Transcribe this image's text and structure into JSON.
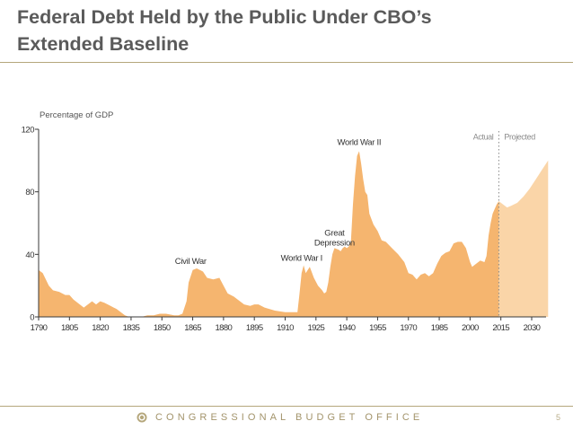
{
  "slide": {
    "title_line1": "Federal Debt Held by the Public Under CBO’s",
    "title_line2": "Extended Baseline",
    "footer_org": "CONGRESSIONAL BUDGET OFFICE",
    "page_number": "5"
  },
  "colors": {
    "actual": "#f5b56f",
    "projected": "#fad5a8",
    "axis": "#3a3a3a",
    "divider": "#888888",
    "accent": "#b5a77c"
  },
  "chart_data": {
    "type": "area",
    "title": "Federal Debt Held by the Public Under CBO’s Extended Baseline",
    "ylabel": "Percentage of GDP",
    "xlabel": "",
    "xlim": [
      1790,
      2040
    ],
    "ylim": [
      0,
      120
    ],
    "x_ticks": [
      1790,
      1805,
      1820,
      1835,
      1850,
      1865,
      1880,
      1895,
      1910,
      1925,
      1940,
      1955,
      1970,
      1985,
      2000,
      2015,
      2030
    ],
    "y_ticks": [
      0,
      40,
      80,
      120
    ],
    "divider_year": 2014,
    "labels": {
      "actual": "Actual",
      "projected": "Projected"
    },
    "annotations": [
      {
        "text": "Civil War",
        "x": 1864,
        "y": 34
      },
      {
        "text": "World War I",
        "x": 1918,
        "y": 36
      },
      {
        "text": "Great Depression",
        "x": 1934,
        "y": 52
      },
      {
        "text": "World War II",
        "x": 1946,
        "y": 110
      }
    ],
    "series": [
      {
        "name": "Actual",
        "points": [
          [
            1790,
            30
          ],
          [
            1792,
            28
          ],
          [
            1795,
            20
          ],
          [
            1797,
            17
          ],
          [
            1800,
            16
          ],
          [
            1803,
            14
          ],
          [
            1805,
            14
          ],
          [
            1807,
            11
          ],
          [
            1810,
            8
          ],
          [
            1812,
            6
          ],
          [
            1814,
            8
          ],
          [
            1816,
            10
          ],
          [
            1818,
            8
          ],
          [
            1820,
            10
          ],
          [
            1822,
            9
          ],
          [
            1825,
            7
          ],
          [
            1828,
            5
          ],
          [
            1830,
            3
          ],
          [
            1832,
            1
          ],
          [
            1834,
            0
          ],
          [
            1840,
            0
          ],
          [
            1843,
            1
          ],
          [
            1846,
            1
          ],
          [
            1849,
            2
          ],
          [
            1852,
            2
          ],
          [
            1856,
            1
          ],
          [
            1858,
            1
          ],
          [
            1860,
            2
          ],
          [
            1862,
            10
          ],
          [
            1863,
            22
          ],
          [
            1865,
            30
          ],
          [
            1867,
            31
          ],
          [
            1870,
            29
          ],
          [
            1872,
            25
          ],
          [
            1875,
            24
          ],
          [
            1878,
            25
          ],
          [
            1880,
            20
          ],
          [
            1882,
            15
          ],
          [
            1885,
            13
          ],
          [
            1888,
            10
          ],
          [
            1890,
            8
          ],
          [
            1893,
            7
          ],
          [
            1895,
            8
          ],
          [
            1897,
            8
          ],
          [
            1900,
            6
          ],
          [
            1905,
            4
          ],
          [
            1910,
            3
          ],
          [
            1914,
            3
          ],
          [
            1916,
            3
          ],
          [
            1917,
            15
          ],
          [
            1918,
            28
          ],
          [
            1919,
            33
          ],
          [
            1920,
            28
          ],
          [
            1922,
            32
          ],
          [
            1924,
            25
          ],
          [
            1926,
            20
          ],
          [
            1928,
            17
          ],
          [
            1929,
            15
          ],
          [
            1930,
            16
          ],
          [
            1931,
            22
          ],
          [
            1932,
            32
          ],
          [
            1933,
            40
          ],
          [
            1934,
            44
          ],
          [
            1936,
            43
          ],
          [
            1937,
            42
          ],
          [
            1938,
            44
          ],
          [
            1939,
            45
          ],
          [
            1940,
            44
          ],
          [
            1941,
            45
          ],
          [
            1942,
            48
          ],
          [
            1943,
            72
          ],
          [
            1944,
            90
          ],
          [
            1945,
            103
          ],
          [
            1946,
            106
          ],
          [
            1947,
            98
          ],
          [
            1948,
            88
          ],
          [
            1949,
            80
          ],
          [
            1950,
            78
          ],
          [
            1951,
            66
          ],
          [
            1953,
            59
          ],
          [
            1955,
            55
          ],
          [
            1957,
            49
          ],
          [
            1959,
            48
          ],
          [
            1962,
            44
          ],
          [
            1965,
            40
          ],
          [
            1968,
            35
          ],
          [
            1970,
            28
          ],
          [
            1972,
            27
          ],
          [
            1974,
            24
          ],
          [
            1976,
            27
          ],
          [
            1978,
            28
          ],
          [
            1980,
            26
          ],
          [
            1982,
            28
          ],
          [
            1984,
            34
          ],
          [
            1986,
            39
          ],
          [
            1988,
            41
          ],
          [
            1990,
            42
          ],
          [
            1992,
            47
          ],
          [
            1994,
            48
          ],
          [
            1996,
            48
          ],
          [
            1998,
            44
          ],
          [
            2000,
            35
          ],
          [
            2001,
            32
          ],
          [
            2003,
            34
          ],
          [
            2005,
            36
          ],
          [
            2007,
            35
          ],
          [
            2008,
            39
          ],
          [
            2009,
            52
          ],
          [
            2010,
            60
          ],
          [
            2011,
            66
          ],
          [
            2012,
            69
          ],
          [
            2013,
            72
          ],
          [
            2014,
            74
          ]
        ]
      },
      {
        "name": "Projected",
        "points": [
          [
            2014,
            74
          ],
          [
            2016,
            72
          ],
          [
            2018,
            70
          ],
          [
            2020,
            71
          ],
          [
            2023,
            73
          ],
          [
            2026,
            77
          ],
          [
            2029,
            82
          ],
          [
            2032,
            88
          ],
          [
            2035,
            94
          ],
          [
            2038,
            100
          ]
        ]
      }
    ]
  }
}
